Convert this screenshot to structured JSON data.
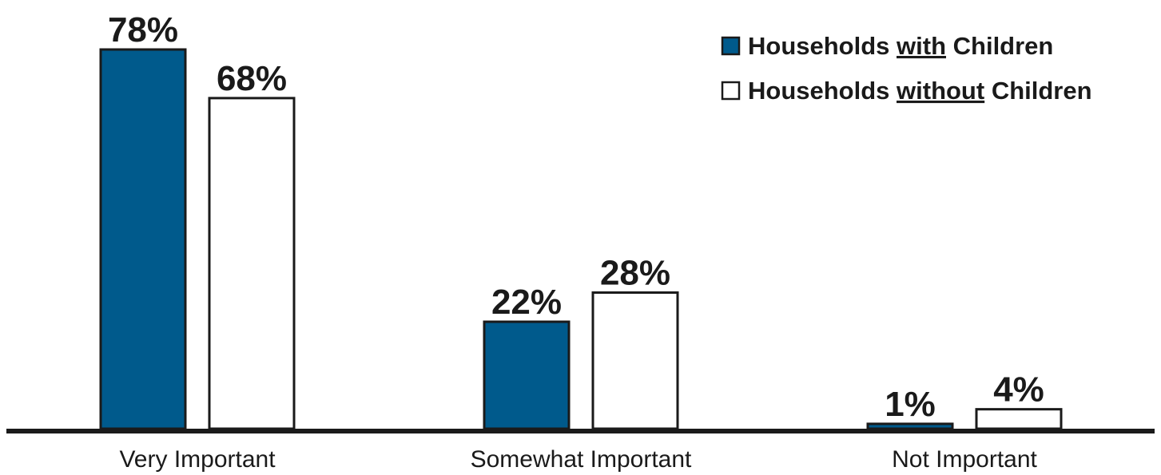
{
  "chart_data": {
    "type": "bar",
    "categories": [
      "Very Important",
      "Somewhat Important",
      "Not Important"
    ],
    "series": [
      {
        "name": "Households with Children",
        "values": [
          78,
          22,
          1
        ],
        "labels": [
          "78%",
          "22%",
          "1%"
        ],
        "color": "#005a8c"
      },
      {
        "name": "Households without Children",
        "values": [
          68,
          28,
          4
        ],
        "labels": [
          "68%",
          "28%",
          "4%"
        ],
        "color": "#ffffff"
      }
    ],
    "legend": {
      "placement": "top-right",
      "entries": [
        {
          "prefix": "Households ",
          "emph": "with",
          "suffix": " Children"
        },
        {
          "prefix": "Households ",
          "emph": "without",
          "suffix": " Children"
        }
      ]
    },
    "ylim": [
      0,
      100
    ],
    "grid": false
  }
}
